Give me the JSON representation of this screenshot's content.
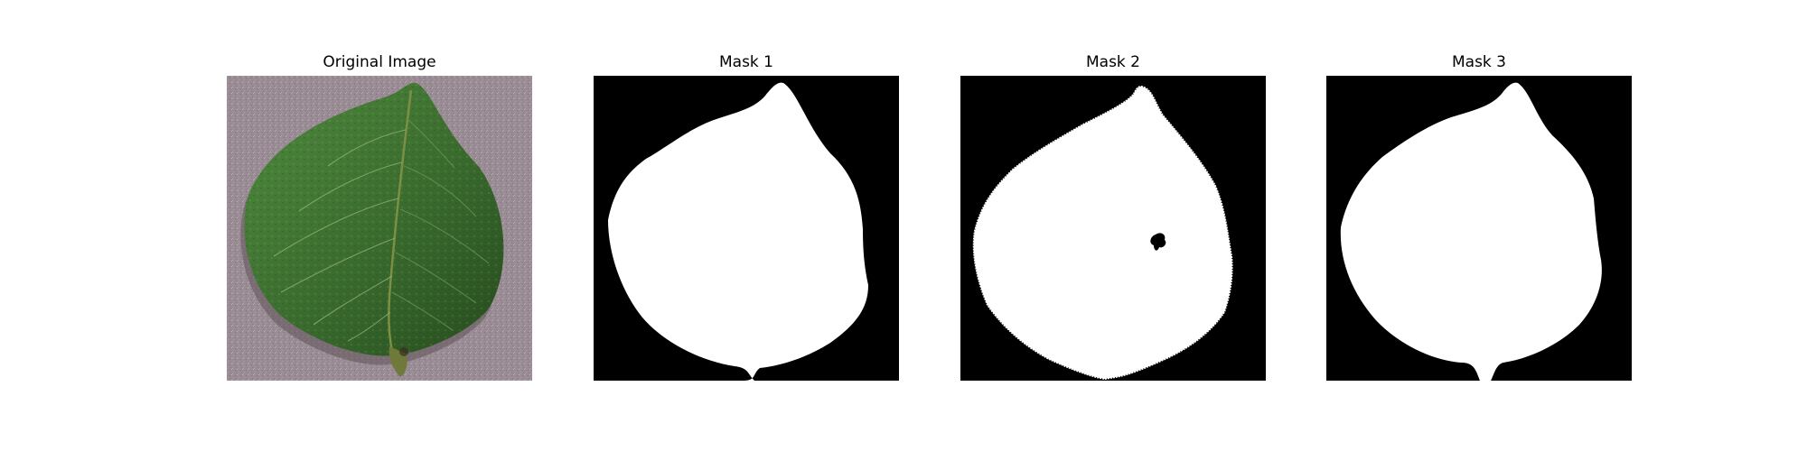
{
  "panels": [
    {
      "title": "Original Image",
      "kind": "photo"
    },
    {
      "title": "Mask 1",
      "kind": "mask"
    },
    {
      "title": "Mask 2",
      "kind": "mask"
    },
    {
      "title": "Mask 3",
      "kind": "mask"
    }
  ],
  "colors": {
    "background": "#ffffff",
    "photo_backdrop": "#9a8c94",
    "leaf_dark": "#2f5a25",
    "leaf_light": "#4f8a3e",
    "leaf_vein": "#7c8f44",
    "mask_background": "#000000",
    "mask_foreground": "#ffffff"
  }
}
